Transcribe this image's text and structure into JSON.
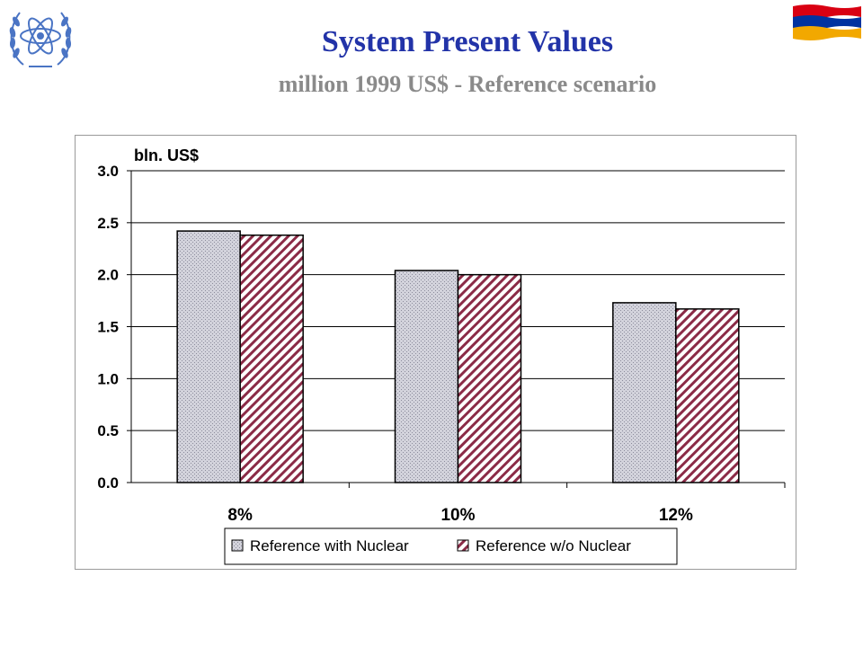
{
  "header": {
    "title": "System Present Values",
    "subtitle": "million 1999 US$ - Reference scenario"
  },
  "colors": {
    "title": "#2233a8",
    "subtitle": "#8a8a8a",
    "series1_fill": "#d3d3dc",
    "series1_pattern": "#8c8c9c",
    "series2_stripe": "#8b2b47",
    "flag_red": "#d90012",
    "flag_blue": "#0033a0",
    "flag_orange": "#f2a800",
    "logo": "#4a74c4"
  },
  "icons": {
    "logo": "un-emblem-icon",
    "flag": "armenia-flag-icon"
  },
  "chart_data": {
    "type": "bar",
    "categories": [
      "8%",
      "10%",
      "12%"
    ],
    "series": [
      {
        "name": "Reference with Nuclear",
        "values": [
          2.42,
          2.04,
          1.73
        ],
        "pattern": "crosshatch"
      },
      {
        "name": "Reference w/o Nuclear",
        "values": [
          2.38,
          2.0,
          1.67
        ],
        "pattern": "diagonal-stripes"
      }
    ],
    "ylabel": "bln. US$",
    "ylim": [
      0,
      3.0
    ],
    "yticks": [
      "0.0",
      "0.5",
      "1.0",
      "1.5",
      "2.0",
      "2.5",
      "3.0"
    ],
    "grid": true,
    "legend": "bottom"
  }
}
